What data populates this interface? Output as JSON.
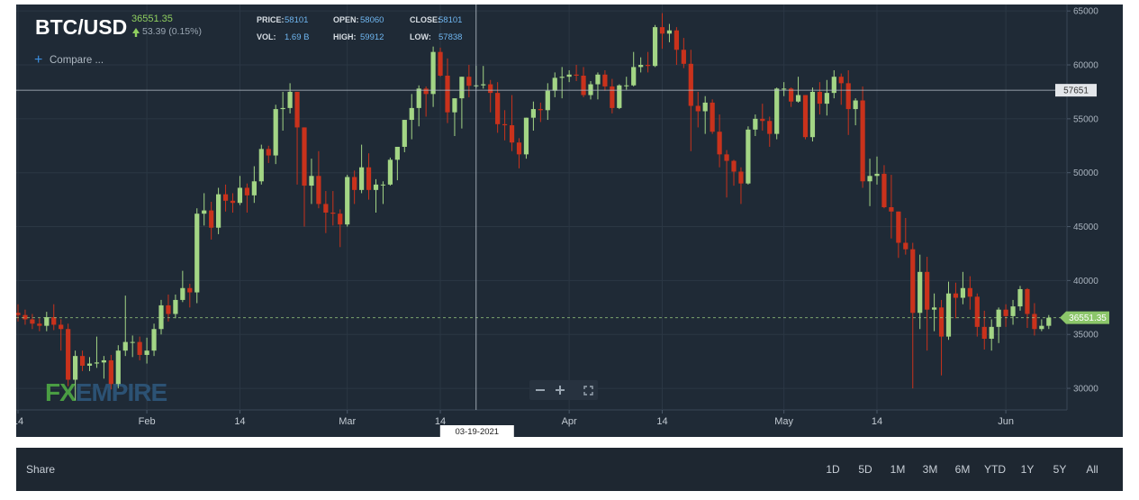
{
  "chart_data": {
    "type": "candlestick",
    "title": "BTC/USD",
    "last_price": 36551.35,
    "change": "53.39 (0.15%)",
    "stats": [
      {
        "label": "PRICE:",
        "value": 58101
      },
      {
        "label": "OPEN:",
        "value": 58060
      },
      {
        "label": "CLOSE:",
        "value": 58101
      },
      {
        "label": "VOL:",
        "value": "1.69 B"
      },
      {
        "label": "HIGH:",
        "value": 59912
      },
      {
        "label": "LOW:",
        "value": 57838
      }
    ],
    "compare": "Compare ...",
    "watermark": {
      "prefix": "FX",
      "rest": "EMPIRE"
    },
    "crosshair": {
      "date": "03-19-2021",
      "price": 57651
    },
    "up_color": "#a3d585",
    "down_color": "#c9321c",
    "grid": true,
    "xlim": [
      "2021-01-14",
      "2021-06-09"
    ],
    "xticks": [
      {
        "value": "2021-01-14",
        "label": "14"
      },
      {
        "value": "2021-02-01",
        "label": "Feb"
      },
      {
        "value": "2021-02-14",
        "label": "14"
      },
      {
        "value": "2021-03-01",
        "label": "Mar"
      },
      {
        "value": "2021-03-14",
        "label": "14"
      },
      {
        "value": "2021-04-01",
        "label": "Apr"
      },
      {
        "value": "2021-04-14",
        "label": "14"
      },
      {
        "value": "2021-05-01",
        "label": "May"
      },
      {
        "value": "2021-05-14",
        "label": "14"
      },
      {
        "value": "2021-06-01",
        "label": "Jun"
      }
    ],
    "ylim": [
      28000,
      65600
    ],
    "yticks": [
      30000,
      35000,
      40000,
      45000,
      50000,
      55000,
      60000,
      65000
    ],
    "x": [
      "2021-01-14",
      "2021-01-15",
      "2021-01-16",
      "2021-01-17",
      "2021-01-18",
      "2021-01-19",
      "2021-01-20",
      "2021-01-21",
      "2021-01-22",
      "2021-01-23",
      "2021-01-24",
      "2021-01-25",
      "2021-01-26",
      "2021-01-27",
      "2021-01-28",
      "2021-01-29",
      "2021-01-30",
      "2021-01-31",
      "2021-02-01",
      "2021-02-02",
      "2021-02-03",
      "2021-02-04",
      "2021-02-05",
      "2021-02-06",
      "2021-02-07",
      "2021-02-08",
      "2021-02-09",
      "2021-02-10",
      "2021-02-11",
      "2021-02-12",
      "2021-02-13",
      "2021-02-14",
      "2021-02-15",
      "2021-02-16",
      "2021-02-17",
      "2021-02-18",
      "2021-02-19",
      "2021-02-20",
      "2021-02-21",
      "2021-02-22",
      "2021-02-23",
      "2021-02-24",
      "2021-02-25",
      "2021-02-26",
      "2021-02-27",
      "2021-02-28",
      "2021-03-01",
      "2021-03-02",
      "2021-03-03",
      "2021-03-04",
      "2021-03-05",
      "2021-03-06",
      "2021-03-07",
      "2021-03-08",
      "2021-03-09",
      "2021-03-10",
      "2021-03-11",
      "2021-03-12",
      "2021-03-13",
      "2021-03-14",
      "2021-03-15",
      "2021-03-16",
      "2021-03-17",
      "2021-03-18",
      "2021-03-19",
      "2021-03-20",
      "2021-03-21",
      "2021-03-22",
      "2021-03-23",
      "2021-03-24",
      "2021-03-25",
      "2021-03-26",
      "2021-03-27",
      "2021-03-28",
      "2021-03-29",
      "2021-03-30",
      "2021-03-31",
      "2021-04-01",
      "2021-04-02",
      "2021-04-03",
      "2021-04-04",
      "2021-04-05",
      "2021-04-06",
      "2021-04-07",
      "2021-04-08",
      "2021-04-09",
      "2021-04-10",
      "2021-04-11",
      "2021-04-12",
      "2021-04-13",
      "2021-04-14",
      "2021-04-15",
      "2021-04-16",
      "2021-04-17",
      "2021-04-18",
      "2021-04-19",
      "2021-04-20",
      "2021-04-21",
      "2021-04-22",
      "2021-04-23",
      "2021-04-24",
      "2021-04-25",
      "2021-04-26",
      "2021-04-27",
      "2021-04-28",
      "2021-04-29",
      "2021-04-30",
      "2021-05-01",
      "2021-05-02",
      "2021-05-03",
      "2021-05-04",
      "2021-05-05",
      "2021-05-06",
      "2021-05-07",
      "2021-05-08",
      "2021-05-09",
      "2021-05-10",
      "2021-05-11",
      "2021-05-12",
      "2021-05-13",
      "2021-05-14",
      "2021-05-15",
      "2021-05-16",
      "2021-05-17",
      "2021-05-18",
      "2021-05-19",
      "2021-05-20",
      "2021-05-21",
      "2021-05-22",
      "2021-05-23",
      "2021-05-24",
      "2021-05-25",
      "2021-05-26",
      "2021-05-27",
      "2021-05-28",
      "2021-05-29",
      "2021-05-30",
      "2021-05-31",
      "2021-06-01",
      "2021-06-02",
      "2021-06-03",
      "2021-06-04",
      "2021-06-05",
      "2021-06-06",
      "2021-06-07"
    ],
    "ohlc": [
      [
        37000,
        37800,
        36200,
        36800
      ],
      [
        36800,
        37300,
        35900,
        36400
      ],
      [
        36400,
        36900,
        35500,
        36000
      ],
      [
        36000,
        36500,
        35300,
        35800
      ],
      [
        35800,
        37100,
        35300,
        36600
      ],
      [
        36600,
        37800,
        35400,
        35900
      ],
      [
        35900,
        36400,
        33500,
        35500
      ],
      [
        35500,
        36000,
        30200,
        30800
      ],
      [
        30800,
        33500,
        28900,
        33000
      ],
      [
        33000,
        33500,
        31600,
        32100
      ],
      [
        32100,
        32900,
        31600,
        32300
      ],
      [
        32300,
        34800,
        31900,
        32400
      ],
      [
        32400,
        33000,
        30900,
        32600
      ],
      [
        32600,
        33100,
        29900,
        30400
      ],
      [
        30400,
        34000,
        30000,
        33500
      ],
      [
        33500,
        38600,
        33000,
        34300
      ],
      [
        34300,
        34900,
        32900,
        34300
      ],
      [
        34300,
        34800,
        32600,
        33100
      ],
      [
        33100,
        34700,
        32300,
        33500
      ],
      [
        33500,
        36000,
        33000,
        35500
      ],
      [
        35500,
        38200,
        35000,
        37700
      ],
      [
        37700,
        38700,
        36200,
        36900
      ],
      [
        36900,
        38700,
        36500,
        38200
      ],
      [
        38200,
        40900,
        38000,
        39300
      ],
      [
        39300,
        39700,
        37500,
        38900
      ],
      [
        38900,
        46700,
        37900,
        46200
      ],
      [
        46200,
        48100,
        45100,
        46500
      ],
      [
        46500,
        47300,
        43800,
        44900
      ],
      [
        44900,
        48600,
        44300,
        48000
      ],
      [
        48000,
        48900,
        46400,
        47400
      ],
      [
        47400,
        48100,
        46300,
        47200
      ],
      [
        47200,
        49700,
        47000,
        48600
      ],
      [
        48600,
        49000,
        46300,
        47900
      ],
      [
        47900,
        50600,
        47200,
        49200
      ],
      [
        49200,
        52600,
        48900,
        52200
      ],
      [
        52200,
        52500,
        50900,
        51600
      ],
      [
        51600,
        56300,
        50800,
        55900
      ],
      [
        55900,
        57500,
        53900,
        56000
      ],
      [
        56000,
        58300,
        55500,
        57500
      ],
      [
        57500,
        57500,
        48900,
        54200
      ],
      [
        54200,
        54200,
        45000,
        48800
      ],
      [
        48800,
        51300,
        47100,
        49700
      ],
      [
        49700,
        52000,
        46700,
        47100
      ],
      [
        47100,
        48300,
        44400,
        46300
      ],
      [
        46300,
        48300,
        45100,
        46200
      ],
      [
        46200,
        46600,
        43100,
        45200
      ],
      [
        45200,
        49800,
        45000,
        49600
      ],
      [
        49600,
        50200,
        47100,
        48400
      ],
      [
        48400,
        52600,
        48100,
        50500
      ],
      [
        50500,
        51800,
        47500,
        48400
      ],
      [
        48400,
        49400,
        46300,
        48900
      ],
      [
        48900,
        49200,
        47100,
        48900
      ],
      [
        48900,
        51400,
        48800,
        51200
      ],
      [
        51200,
        52400,
        49300,
        52400
      ],
      [
        52400,
        54900,
        51900,
        54900
      ],
      [
        54900,
        57300,
        53100,
        56000
      ],
      [
        56000,
        58100,
        54300,
        57800
      ],
      [
        57800,
        58000,
        55200,
        57300
      ],
      [
        57300,
        61700,
        56100,
        61200
      ],
      [
        61200,
        61600,
        58900,
        59000
      ],
      [
        59000,
        60600,
        54600,
        55600
      ],
      [
        55600,
        56900,
        53400,
        56900
      ],
      [
        56900,
        58900,
        54100,
        58900
      ],
      [
        58900,
        60000,
        57000,
        58060
      ],
      [
        58060,
        59912,
        57838,
        58101
      ],
      [
        58101,
        59900,
        57800,
        58200
      ],
      [
        58200,
        58600,
        55600,
        57400
      ],
      [
        57400,
        58400,
        53700,
        54500
      ],
      [
        54500,
        55800,
        53000,
        54400
      ],
      [
        54400,
        57200,
        52000,
        52800
      ],
      [
        52800,
        53200,
        50400,
        51700
      ],
      [
        51700,
        55100,
        51300,
        55100
      ],
      [
        55100,
        56600,
        53900,
        55900
      ],
      [
        55900,
        56500,
        54700,
        55800
      ],
      [
        55800,
        58300,
        54900,
        57600
      ],
      [
        57600,
        59300,
        57000,
        58800
      ],
      [
        58800,
        59800,
        56900,
        58900
      ],
      [
        58900,
        59500,
        58400,
        59100
      ],
      [
        59100,
        60000,
        58500,
        59000
      ],
      [
        59000,
        59800,
        57000,
        57200
      ],
      [
        57200,
        58500,
        56800,
        58200
      ],
      [
        58200,
        59300,
        56800,
        59100
      ],
      [
        59100,
        59500,
        57600,
        58000
      ],
      [
        58000,
        58700,
        55500,
        56000
      ],
      [
        56000,
        58200,
        55900,
        58100
      ],
      [
        58100,
        58900,
        57700,
        58100
      ],
      [
        58100,
        61200,
        58000,
        59800
      ],
      [
        59800,
        60700,
        59300,
        60000
      ],
      [
        60000,
        61200,
        59300,
        59900
      ],
      [
        59900,
        63700,
        59800,
        63500
      ],
      [
        63500,
        64800,
        61500,
        62900
      ],
      [
        62900,
        63800,
        62100,
        63200
      ],
      [
        63200,
        63500,
        60000,
        61400
      ],
      [
        61400,
        62500,
        59700,
        60100
      ],
      [
        60100,
        61400,
        52000,
        56200
      ],
      [
        56200,
        57500,
        54200,
        55700
      ],
      [
        55700,
        57100,
        53600,
        56500
      ],
      [
        56500,
        56800,
        53600,
        53800
      ],
      [
        53800,
        55400,
        50500,
        51700
      ],
      [
        51700,
        52100,
        47700,
        51100
      ],
      [
        51100,
        51200,
        48800,
        50100
      ],
      [
        50100,
        50500,
        47100,
        49000
      ],
      [
        49000,
        54300,
        48900,
        54000
      ],
      [
        54000,
        55400,
        53400,
        55000
      ],
      [
        55000,
        56400,
        53900,
        54800
      ],
      [
        54800,
        55200,
        52400,
        53600
      ],
      [
        53600,
        57900,
        53100,
        57800
      ],
      [
        57800,
        58400,
        57100,
        57800
      ],
      [
        57800,
        57900,
        56100,
        56600
      ],
      [
        56600,
        58900,
        56500,
        57200
      ],
      [
        57200,
        57200,
        53100,
        53300
      ],
      [
        53300,
        57900,
        52900,
        57500
      ],
      [
        57500,
        58400,
        55400,
        56400
      ],
      [
        56400,
        58600,
        55300,
        57400
      ],
      [
        57400,
        59500,
        56900,
        58900
      ],
      [
        58900,
        59200,
        56300,
        58300
      ],
      [
        58300,
        59500,
        53500,
        55900
      ],
      [
        55900,
        56900,
        54400,
        56700
      ],
      [
        56700,
        58000,
        48600,
        49200
      ],
      [
        49200,
        51300,
        46900,
        49700
      ],
      [
        49700,
        51500,
        48900,
        49900
      ],
      [
        49900,
        50700,
        46700,
        46800
      ],
      [
        46800,
        49800,
        43900,
        46400
      ],
      [
        46400,
        46400,
        42100,
        43500
      ],
      [
        43500,
        45800,
        42400,
        42900
      ],
      [
        42900,
        43500,
        30000,
        37000
      ],
      [
        37000,
        42400,
        35500,
        40800
      ],
      [
        40800,
        42200,
        33500,
        37300
      ],
      [
        37300,
        38800,
        35300,
        37500
      ],
      [
        37500,
        38200,
        31200,
        34800
      ],
      [
        34800,
        39900,
        34500,
        38800
      ],
      [
        38800,
        39800,
        36500,
        38400
      ],
      [
        38400,
        40800,
        37800,
        39300
      ],
      [
        39300,
        40400,
        37300,
        38500
      ],
      [
        38500,
        38800,
        34800,
        35700
      ],
      [
        35700,
        37200,
        33600,
        34600
      ],
      [
        34600,
        36400,
        33500,
        35700
      ],
      [
        35700,
        37500,
        34200,
        37300
      ],
      [
        37300,
        37800,
        35700,
        36700
      ],
      [
        36700,
        38200,
        35900,
        37600
      ],
      [
        37600,
        39500,
        37200,
        39200
      ],
      [
        39200,
        39300,
        35600,
        36900
      ],
      [
        36900,
        37900,
        34900,
        35500
      ],
      [
        35500,
        36400,
        35300,
        35800
      ],
      [
        35800,
        36800,
        35500,
        36551
      ]
    ],
    "toolbar": {
      "share": "Share",
      "ranges": [
        "1D",
        "5D",
        "1M",
        "3M",
        "6M",
        "YTD",
        "1Y",
        "5Y",
        "All"
      ]
    }
  }
}
